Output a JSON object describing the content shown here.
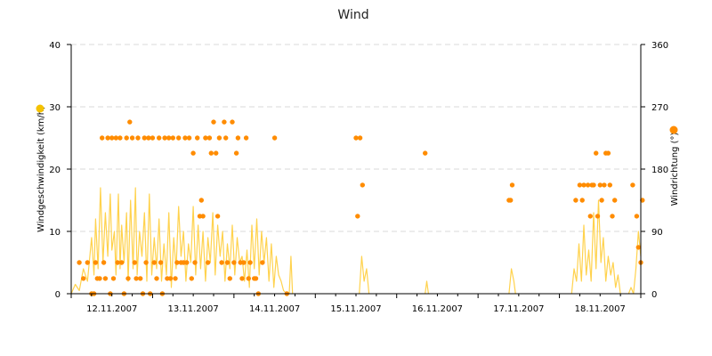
{
  "chart_data": {
    "type": "line+scatter",
    "title": "Wind",
    "left_axis": {
      "label": "Windgeschwindigkeit (km/h)",
      "ylim": [
        0,
        40
      ],
      "ticks": [
        0,
        10,
        20,
        30,
        40
      ],
      "tick_labels": [
        "0",
        "10",
        "20",
        "30",
        "40"
      ]
    },
    "right_axis": {
      "label": "Windrichtung (°)",
      "ylim": [
        0,
        360
      ],
      "ticks": [
        0,
        90,
        180,
        270,
        360
      ],
      "tick_labels": [
        "0",
        "90",
        "180",
        "270",
        "360"
      ]
    },
    "x_axis": {
      "xlim": [
        0,
        7
      ],
      "unit": "days since 12.11.2007 00:00",
      "date_labels": [
        "12.11.2007",
        "13.11.2007",
        "14.11.2007",
        "15.11.2007",
        "16.11.2007",
        "17.11.2007",
        "18.11.2007"
      ],
      "label_positions": [
        0.5,
        1.5,
        2.5,
        3.5,
        4.5,
        5.5,
        6.5
      ]
    },
    "colors": {
      "speed": "#f5c200",
      "speed_line": "#ffd24d",
      "direction": "#ff8c00",
      "grid": "#d8d8d8"
    },
    "series": [
      {
        "name": "Windgeschwindigkeit",
        "axis": "left",
        "style": "line",
        "segments": [
          [
            [
              0.0,
              0
            ],
            [
              0.05,
              1.5
            ],
            [
              0.1,
              0.5
            ],
            [
              0.15,
              4
            ],
            [
              0.2,
              2
            ],
            [
              0.25,
              9
            ],
            [
              0.28,
              3
            ],
            [
              0.3,
              12
            ],
            [
              0.33,
              4
            ],
            [
              0.36,
              17
            ],
            [
              0.39,
              5
            ],
            [
              0.42,
              13
            ],
            [
              0.45,
              6
            ],
            [
              0.48,
              16
            ],
            [
              0.5,
              7
            ],
            [
              0.53,
              10
            ],
            [
              0.55,
              3
            ],
            [
              0.58,
              16
            ],
            [
              0.6,
              4
            ],
            [
              0.62,
              11
            ],
            [
              0.65,
              5
            ],
            [
              0.68,
              13
            ],
            [
              0.7,
              2
            ],
            [
              0.73,
              15
            ],
            [
              0.76,
              4
            ],
            [
              0.79,
              17
            ],
            [
              0.81,
              3
            ],
            [
              0.84,
              10
            ],
            [
              0.87,
              6
            ],
            [
              0.9,
              13
            ],
            [
              0.93,
              2
            ],
            [
              0.96,
              16
            ],
            [
              0.99,
              3
            ],
            [
              1.02,
              9
            ],
            [
              1.05,
              4
            ],
            [
              1.08,
              12
            ],
            [
              1.11,
              2
            ],
            [
              1.14,
              8
            ],
            [
              1.17,
              3
            ],
            [
              1.2,
              13
            ],
            [
              1.23,
              1
            ],
            [
              1.26,
              9
            ],
            [
              1.29,
              4
            ],
            [
              1.32,
              14
            ],
            [
              1.35,
              6
            ],
            [
              1.38,
              10
            ],
            [
              1.41,
              2
            ],
            [
              1.44,
              8
            ],
            [
              1.47,
              5
            ],
            [
              1.5,
              14
            ],
            [
              1.53,
              3
            ],
            [
              1.56,
              11
            ],
            [
              1.59,
              4
            ],
            [
              1.62,
              10
            ],
            [
              1.65,
              2
            ],
            [
              1.68,
              9
            ],
            [
              1.71,
              5
            ],
            [
              1.74,
              13
            ],
            [
              1.77,
              3
            ],
            [
              1.8,
              11
            ],
            [
              1.83,
              6
            ],
            [
              1.86,
              10
            ],
            [
              1.89,
              2
            ],
            [
              1.92,
              8
            ],
            [
              1.95,
              4
            ],
            [
              1.98,
              11
            ],
            [
              2.01,
              3
            ],
            [
              2.04,
              9
            ],
            [
              2.07,
              5
            ],
            [
              2.1,
              6
            ],
            [
              2.13,
              2
            ],
            [
              2.16,
              7
            ],
            [
              2.19,
              1
            ],
            [
              2.22,
              11
            ],
            [
              2.25,
              4
            ],
            [
              2.28,
              12
            ],
            [
              2.31,
              3
            ],
            [
              2.34,
              10
            ],
            [
              2.37,
              5
            ],
            [
              2.4,
              9
            ],
            [
              2.43,
              2
            ],
            [
              2.46,
              8
            ],
            [
              2.49,
              1
            ],
            [
              2.52,
              6
            ],
            [
              2.55,
              3
            ],
            [
              2.58,
              2
            ],
            [
              2.61,
              0.5
            ],
            [
              2.65,
              0
            ]
          ],
          [
            [
              2.68,
              0
            ],
            [
              2.7,
              6
            ],
            [
              2.72,
              0
            ]
          ],
          [
            [
              3.54,
              0
            ],
            [
              3.57,
              6
            ],
            [
              3.6,
              2
            ],
            [
              3.63,
              4
            ],
            [
              3.66,
              0
            ]
          ],
          [
            [
              4.35,
              0
            ],
            [
              4.37,
              2
            ],
            [
              4.39,
              0
            ]
          ],
          [
            [
              5.38,
              0
            ],
            [
              5.41,
              4
            ],
            [
              5.44,
              2
            ],
            [
              5.46,
              0
            ]
          ],
          [
            [
              6.15,
              0
            ],
            [
              6.18,
              4
            ],
            [
              6.21,
              2
            ],
            [
              6.24,
              8
            ],
            [
              6.27,
              2
            ],
            [
              6.3,
              11
            ],
            [
              6.33,
              3
            ],
            [
              6.36,
              7
            ],
            [
              6.39,
              2
            ],
            [
              6.42,
              13
            ],
            [
              6.45,
              4
            ],
            [
              6.48,
              15
            ],
            [
              6.51,
              5
            ],
            [
              6.54,
              9
            ],
            [
              6.57,
              2
            ],
            [
              6.6,
              6
            ],
            [
              6.63,
              3
            ],
            [
              6.66,
              5
            ],
            [
              6.69,
              1
            ],
            [
              6.72,
              3
            ],
            [
              6.75,
              0
            ]
          ],
          [
            [
              6.85,
              0
            ],
            [
              6.88,
              1
            ],
            [
              6.91,
              0
            ],
            [
              6.94,
              4
            ],
            [
              6.97,
              10
            ],
            [
              7.0,
              6
            ]
          ]
        ]
      },
      {
        "name": "Windrichtung",
        "axis": "right",
        "style": "markers",
        "points": [
          [
            0.1,
            45
          ],
          [
            0.15,
            22
          ],
          [
            0.2,
            45
          ],
          [
            0.25,
            0
          ],
          [
            0.28,
            0
          ],
          [
            0.3,
            45
          ],
          [
            0.32,
            22
          ],
          [
            0.35,
            22
          ],
          [
            0.38,
            225
          ],
          [
            0.4,
            45
          ],
          [
            0.42,
            22
          ],
          [
            0.45,
            225
          ],
          [
            0.48,
            0
          ],
          [
            0.5,
            225
          ],
          [
            0.52,
            22
          ],
          [
            0.55,
            225
          ],
          [
            0.57,
            45
          ],
          [
            0.6,
            225
          ],
          [
            0.62,
            45
          ],
          [
            0.65,
            0
          ],
          [
            0.68,
            225
          ],
          [
            0.7,
            22
          ],
          [
            0.72,
            248
          ],
          [
            0.75,
            225
          ],
          [
            0.78,
            45
          ],
          [
            0.8,
            22
          ],
          [
            0.82,
            225
          ],
          [
            0.85,
            22
          ],
          [
            0.88,
            0
          ],
          [
            0.9,
            225
          ],
          [
            0.92,
            45
          ],
          [
            0.95,
            225
          ],
          [
            0.97,
            0
          ],
          [
            1.0,
            225
          ],
          [
            1.02,
            45
          ],
          [
            1.05,
            22
          ],
          [
            1.08,
            225
          ],
          [
            1.1,
            45
          ],
          [
            1.12,
            0
          ],
          [
            1.15,
            225
          ],
          [
            1.18,
            22
          ],
          [
            1.2,
            225
          ],
          [
            1.22,
            22
          ],
          [
            1.25,
            225
          ],
          [
            1.28,
            22
          ],
          [
            1.3,
            45
          ],
          [
            1.32,
            225
          ],
          [
            1.35,
            45
          ],
          [
            1.38,
            45
          ],
          [
            1.4,
            225
          ],
          [
            1.42,
            45
          ],
          [
            1.45,
            225
          ],
          [
            1.48,
            22
          ],
          [
            1.5,
            203
          ],
          [
            1.52,
            45
          ],
          [
            1.55,
            225
          ],
          [
            1.58,
            112
          ],
          [
            1.6,
            135
          ],
          [
            1.62,
            112
          ],
          [
            1.65,
            225
          ],
          [
            1.68,
            45
          ],
          [
            1.7,
            225
          ],
          [
            1.72,
            203
          ],
          [
            1.75,
            248
          ],
          [
            1.78,
            203
          ],
          [
            1.8,
            112
          ],
          [
            1.82,
            225
          ],
          [
            1.85,
            45
          ],
          [
            1.88,
            248
          ],
          [
            1.9,
            225
          ],
          [
            1.92,
            45
          ],
          [
            1.95,
            22
          ],
          [
            1.98,
            248
          ],
          [
            2.0,
            45
          ],
          [
            2.03,
            203
          ],
          [
            2.05,
            225
          ],
          [
            2.08,
            45
          ],
          [
            2.1,
            22
          ],
          [
            2.12,
            45
          ],
          [
            2.15,
            225
          ],
          [
            2.18,
            22
          ],
          [
            2.2,
            45
          ],
          [
            2.25,
            22
          ],
          [
            2.27,
            22
          ],
          [
            2.3,
            0
          ],
          [
            2.35,
            45
          ],
          [
            2.5,
            225
          ],
          [
            2.65,
            0
          ],
          [
            3.5,
            225
          ],
          [
            3.52,
            112
          ],
          [
            3.55,
            225
          ],
          [
            3.58,
            157
          ],
          [
            4.35,
            203
          ],
          [
            5.38,
            135
          ],
          [
            5.4,
            135
          ],
          [
            5.42,
            157
          ],
          [
            6.2,
            135
          ],
          [
            6.25,
            157
          ],
          [
            6.28,
            135
          ],
          [
            6.3,
            157
          ],
          [
            6.35,
            157
          ],
          [
            6.38,
            112
          ],
          [
            6.4,
            157
          ],
          [
            6.42,
            157
          ],
          [
            6.45,
            203
          ],
          [
            6.47,
            112
          ],
          [
            6.5,
            157
          ],
          [
            6.52,
            135
          ],
          [
            6.55,
            157
          ],
          [
            6.57,
            203
          ],
          [
            6.6,
            203
          ],
          [
            6.62,
            157
          ],
          [
            6.65,
            112
          ],
          [
            6.68,
            135
          ],
          [
            6.9,
            157
          ],
          [
            6.95,
            112
          ],
          [
            6.97,
            67
          ],
          [
            7.0,
            45
          ],
          [
            7.02,
            135
          ]
        ]
      }
    ]
  }
}
